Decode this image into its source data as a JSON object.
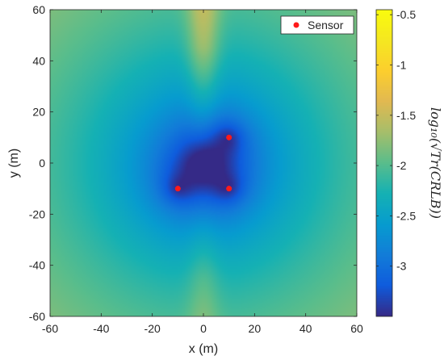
{
  "chart_data": {
    "type": "heatmap",
    "title": "",
    "xlabel": "x (m)",
    "ylabel": "y (m)",
    "xlim": [
      -60,
      60
    ],
    "ylim": [
      -60,
      60
    ],
    "x_ticks": [
      -60,
      -40,
      -20,
      0,
      20,
      40,
      60
    ],
    "y_ticks": [
      -60,
      -40,
      -20,
      0,
      20,
      40,
      60
    ],
    "x_tick_labels": [
      "-60",
      "-40",
      "-20",
      "0",
      "20",
      "40",
      "60"
    ],
    "y_tick_labels": [
      "-60",
      "-40",
      "-20",
      "0",
      "20",
      "40",
      "60"
    ],
    "colormap": "parula",
    "colorbar": {
      "label": "log₁₀(√Tr(CRLB))",
      "range": [
        -3.5,
        -0.45
      ],
      "ticks": [
        -3,
        -2.5,
        -2,
        -1.5,
        -1,
        -0.5
      ],
      "tick_labels": [
        "-3",
        "-2.5",
        "-2",
        "-1.5",
        "-1",
        "-0.5"
      ]
    },
    "series": [
      {
        "name": "Sensor",
        "type": "scatter",
        "color": "#ff1a1a",
        "points": [
          {
            "x": -10,
            "y": -10
          },
          {
            "x": 10,
            "y": -10
          },
          {
            "x": 10,
            "y": 10
          }
        ]
      }
    ],
    "legend": {
      "position": "top-right",
      "entries": [
        "Sensor"
      ]
    },
    "grid": false
  }
}
